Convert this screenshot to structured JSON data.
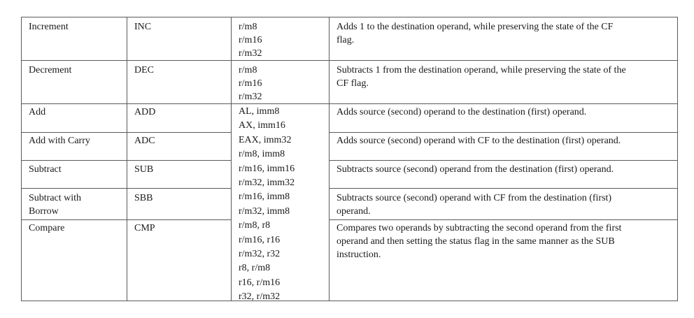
{
  "rows": [
    {
      "name": "Increment",
      "mnemonic": "INC",
      "operands": [
        "r/m8",
        "r/m16",
        "r/m32"
      ],
      "description": [
        "Adds 1 to the destination operand, while preserving the state of the CF",
        "flag."
      ]
    },
    {
      "name": "Decrement",
      "mnemonic": "DEC",
      "operands": [
        "r/m8",
        "r/m16",
        "r/m32"
      ],
      "description": [
        "Subtracts 1 from the destination operand, while preserving the state of the",
        "CF flag."
      ]
    },
    {
      "name": "Add",
      "mnemonic": "ADD",
      "description": [
        "Adds source (second) operand to the destination (first) operand."
      ]
    },
    {
      "name": "Add with Carry",
      "mnemonic": "ADC",
      "description": [
        "Adds source (second) operand with CF to the destination (first) operand."
      ]
    },
    {
      "name": "Subtract",
      "mnemonic": "SUB",
      "description": [
        "Subtracts source (second) operand from the destination (first) operand."
      ]
    },
    {
      "name": [
        "Subtract with",
        "Borrow"
      ],
      "mnemonic": "SBB",
      "description": [
        "Subtracts source (second) operand with CF from the destination (first)",
        "operand."
      ]
    },
    {
      "name": "Compare",
      "mnemonic": "CMP",
      "description": [
        "Compares two operands by subtracting the second operand from the first",
        "operand and then setting the status flag in the same manner as the SUB",
        "instruction."
      ]
    }
  ],
  "shared_operands": [
    "AL, imm8",
    "AX, imm16",
    "EAX, imm32",
    "r/m8, imm8",
    "r/m16, imm16",
    "r/m32, imm32",
    "r/m16, imm8",
    "r/m32, imm8",
    "r/m8, r8",
    "r/m16, r16",
    "r/m32, r32",
    "r8, r/m8",
    "r16, r/m16",
    "r32, r/m32"
  ]
}
